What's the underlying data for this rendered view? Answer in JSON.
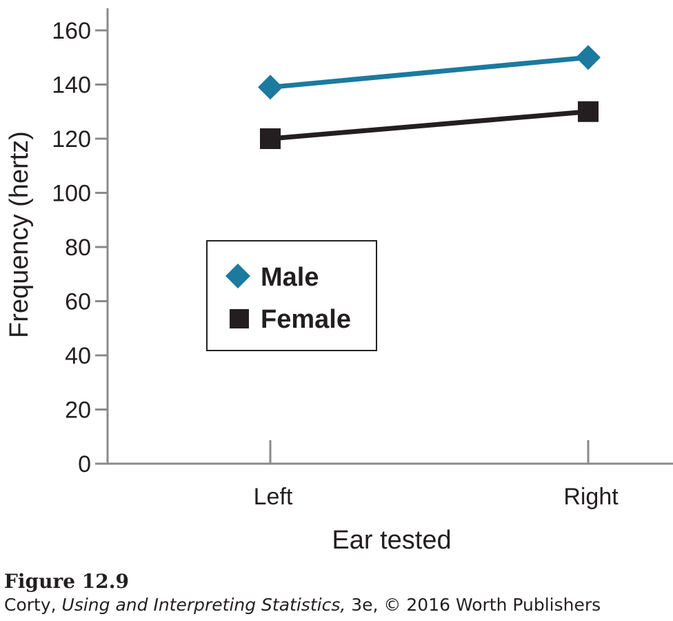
{
  "chart_data": {
    "type": "line",
    "categories": [
      "Left",
      "Right"
    ],
    "series": [
      {
        "name": "Male",
        "values": [
          139,
          150
        ],
        "color": "#1b7a9e",
        "marker": "diamond"
      },
      {
        "name": "Female",
        "values": [
          120,
          130
        ],
        "color": "#231f20",
        "marker": "square"
      }
    ],
    "xlabel": "Ear tested",
    "ylabel": "Frequency (hertz)",
    "ylim": [
      0,
      160
    ],
    "yticks": [
      "0",
      "20",
      "40",
      "60",
      "80",
      "100",
      "120",
      "140",
      "160"
    ],
    "grid": false,
    "legend_position": "center-left"
  },
  "caption": {
    "figure_number": "Figure 12.9",
    "author": "Corty,",
    "book_title": "Using and Interpreting Statistics,",
    "edition_rest": "3e, © 2016 Worth Publishers"
  }
}
